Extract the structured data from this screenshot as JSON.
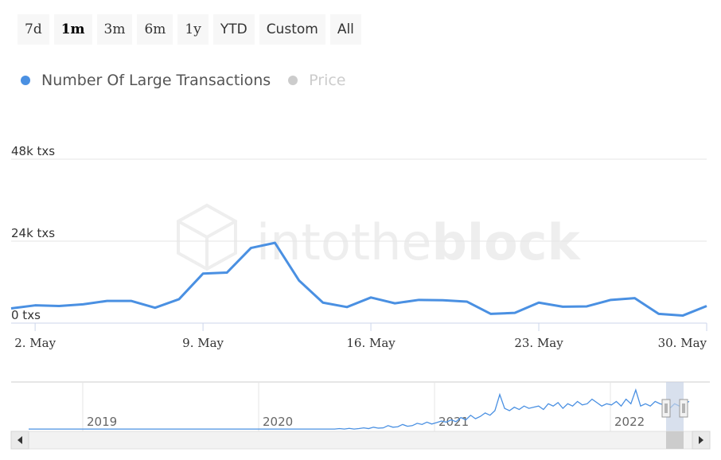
{
  "range_selector": {
    "buttons": [
      {
        "label": "7d",
        "active": false
      },
      {
        "label": "1m",
        "active": true
      },
      {
        "label": "3m",
        "active": false
      },
      {
        "label": "6m",
        "active": false
      },
      {
        "label": "1y",
        "active": false
      },
      {
        "label": "YTD",
        "active": false
      },
      {
        "label": "Custom",
        "active": false
      },
      {
        "label": "All",
        "active": false
      }
    ]
  },
  "legend": {
    "items": [
      {
        "label": "Number Of Large Transactions",
        "color": "#4a90e2",
        "active": true
      },
      {
        "label": "Price",
        "color": "#cccccc",
        "active": false
      }
    ]
  },
  "watermark": {
    "brand_light": "intothe",
    "brand_bold": "block"
  },
  "chart_data": {
    "type": "line",
    "ylabel_unit": "txs",
    "ylim": [
      0,
      48000
    ],
    "y_ticks": [
      "0 txs",
      "24k txs",
      "48k txs"
    ],
    "x_ticks": [
      "2. May",
      "9. May",
      "16. May",
      "23. May",
      "30. May"
    ],
    "x_tick_days": [
      2,
      9,
      16,
      23,
      30
    ],
    "series": [
      {
        "name": "Number Of Large Transactions",
        "color": "#4a90e2",
        "points": [
          {
            "day": 1,
            "value": 4300
          },
          {
            "day": 2,
            "value": 5200
          },
          {
            "day": 3,
            "value": 5000
          },
          {
            "day": 4,
            "value": 5500
          },
          {
            "day": 5,
            "value": 6500
          },
          {
            "day": 6,
            "value": 6500
          },
          {
            "day": 7,
            "value": 4500
          },
          {
            "day": 8,
            "value": 7000
          },
          {
            "day": 9,
            "value": 14500
          },
          {
            "day": 10,
            "value": 14800
          },
          {
            "day": 11,
            "value": 22000
          },
          {
            "day": 12,
            "value": 23500
          },
          {
            "day": 13,
            "value": 12500
          },
          {
            "day": 14,
            "value": 6000
          },
          {
            "day": 15,
            "value": 4700
          },
          {
            "day": 16,
            "value": 7500
          },
          {
            "day": 17,
            "value": 5800
          },
          {
            "day": 18,
            "value": 6800
          },
          {
            "day": 19,
            "value": 6700
          },
          {
            "day": 20,
            "value": 6300
          },
          {
            "day": 21,
            "value": 2700
          },
          {
            "day": 22,
            "value": 3000
          },
          {
            "day": 23,
            "value": 6000
          },
          {
            "day": 24,
            "value": 4800
          },
          {
            "day": 25,
            "value": 4900
          },
          {
            "day": 26,
            "value": 6800
          },
          {
            "day": 27,
            "value": 7300
          },
          {
            "day": 28,
            "value": 2700
          },
          {
            "day": 29,
            "value": 2200
          },
          {
            "day": 30,
            "value": 5000
          }
        ]
      },
      {
        "name": "Price",
        "color": "#cccccc",
        "hidden": true,
        "points": []
      }
    ],
    "navigator": {
      "years": [
        "2019",
        "2020",
        "2021",
        "2022"
      ],
      "overview": [
        1,
        1,
        1,
        1,
        1,
        1,
        1,
        1,
        1,
        1,
        1,
        1,
        1,
        1,
        1,
        1,
        1,
        1,
        1,
        1,
        1,
        1,
        1,
        1,
        1,
        1,
        1,
        1,
        1,
        1,
        1,
        1,
        1,
        1,
        1,
        1,
        1,
        1,
        1,
        1,
        1,
        1,
        1,
        1,
        1,
        1,
        1,
        1,
        1,
        1,
        1,
        1,
        1,
        1,
        1,
        1,
        1,
        1,
        1,
        1,
        1,
        1,
        1,
        1,
        1.2,
        1,
        1.3,
        1,
        1.2,
        1.5,
        1.2,
        1.8,
        1.4,
        1.5,
        2.5,
        1.8,
        2,
        3,
        2.2,
        2.5,
        3.5,
        3,
        4,
        3.2,
        3.8,
        4.5,
        4,
        5,
        4.2,
        6,
        5,
        7,
        5.5,
        6.5,
        8,
        7,
        9,
        16,
        10,
        9,
        10.5,
        9.5,
        11,
        10,
        10.5,
        11,
        9.5,
        12,
        11,
        12.5,
        10,
        12,
        11,
        13,
        11.5,
        12,
        14,
        12.5,
        11,
        12,
        11.5,
        13,
        11,
        14,
        12,
        18,
        11,
        12,
        11,
        13,
        12,
        11.5,
        10,
        12,
        11,
        12,
        13
      ]
    }
  }
}
